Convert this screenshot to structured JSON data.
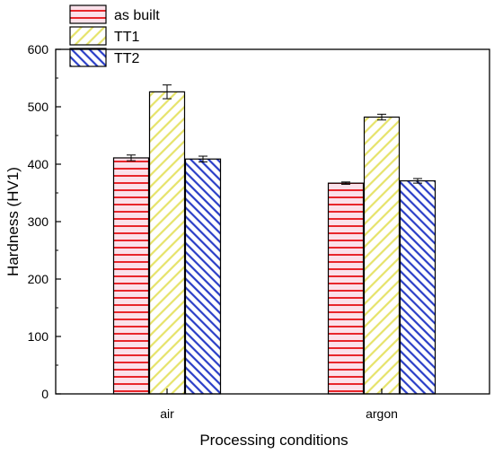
{
  "chart_data": {
    "type": "bar",
    "categories": [
      "air",
      "argon"
    ],
    "series": [
      {
        "name": "as built",
        "values": [
          411,
          367
        ],
        "errors": [
          5,
          2
        ],
        "color": "#e8262b",
        "fill": "#fbe1ea",
        "pattern": "horizontal-lines"
      },
      {
        "name": "TT1",
        "values": [
          526,
          482
        ],
        "errors": [
          12,
          5
        ],
        "color": "#e6e36a",
        "fill": "#ffffff",
        "pattern": "diagonal-lines"
      },
      {
        "name": "TT2",
        "values": [
          409,
          371
        ],
        "errors": [
          5,
          4
        ],
        "color": "#2a3ec7",
        "fill": "#ffffff",
        "pattern": "diagonal-lines"
      }
    ],
    "xlabel": "Processing conditions",
    "ylabel": "Hardness (HV1)",
    "ylim": [
      0,
      600
    ],
    "yticks": [
      0,
      100,
      200,
      300,
      400,
      500,
      600
    ],
    "grid": false,
    "legend_position": "top-left"
  }
}
